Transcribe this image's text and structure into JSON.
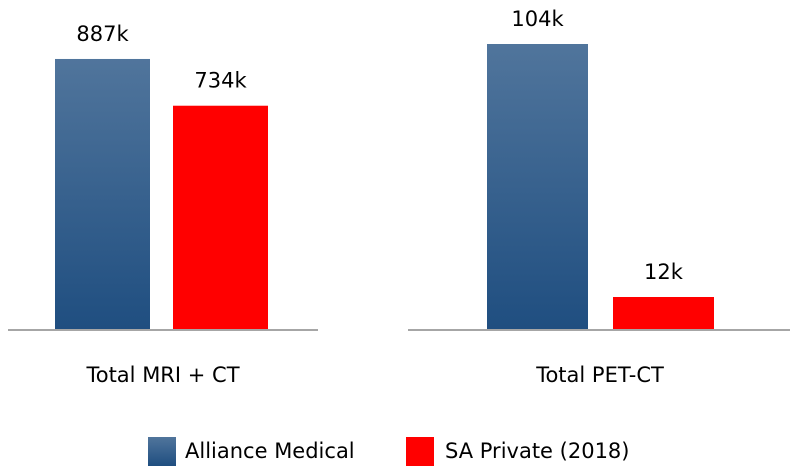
{
  "chart_data": [
    {
      "type": "bar",
      "categories": [
        "Total MRI + CT"
      ],
      "series": [
        {
          "name": "Alliance Medical",
          "color": "#1f4e80",
          "gradient": true,
          "values": [
            887
          ],
          "value_labels": [
            "887k"
          ]
        },
        {
          "name": "SA Private (2018)",
          "color": "#ff0000",
          "values": [
            734
          ],
          "value_labels": [
            "734k"
          ]
        }
      ],
      "ylim": [
        0,
        1080
      ]
    },
    {
      "type": "bar",
      "categories": [
        "Total PET-CT"
      ],
      "series": [
        {
          "color": "#1f4e80",
          "gradient": true,
          "values": [
            104
          ],
          "value_labels": [
            "104k"
          ]
        },
        {
          "color": "#ff0000",
          "values": [
            12
          ],
          "value_labels": [
            "12k"
          ]
        }
      ],
      "ylim": [
        0,
        120
      ]
    }
  ]
}
